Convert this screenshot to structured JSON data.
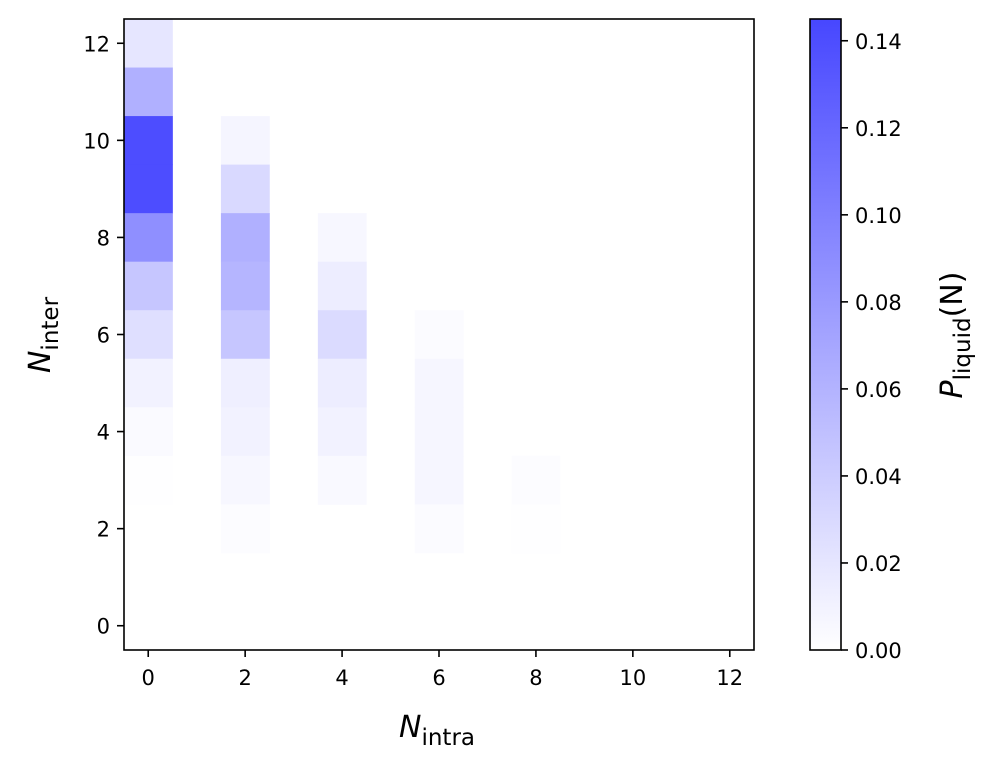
{
  "chart_data": {
    "type": "heatmap",
    "title": "",
    "xlabel": {
      "main": "N",
      "sub": "intra"
    },
    "ylabel": {
      "main": "N",
      "sub": "inter"
    },
    "colorbar_label": {
      "main": "P",
      "sub": "liquid",
      "suffix": "(N)"
    },
    "xlim": [
      -0.5,
      12.5
    ],
    "ylim": [
      -0.5,
      12.5
    ],
    "x_ticks": [
      0,
      2,
      4,
      6,
      8,
      10,
      12
    ],
    "y_ticks": [
      0,
      2,
      4,
      6,
      8,
      10,
      12
    ],
    "colorbar_range": [
      0,
      0.145
    ],
    "colorbar_ticks": [
      "0.00",
      "0.02",
      "0.04",
      "0.06",
      "0.08",
      "0.10",
      "0.12",
      "0.14"
    ],
    "colormap": {
      "low": "#ffffff",
      "high": "#4747ff"
    },
    "cells": [
      {
        "x": 0,
        "y": 12,
        "value": 0.02
      },
      {
        "x": 0,
        "y": 11,
        "value": 0.062
      },
      {
        "x": 0,
        "y": 10,
        "value": 0.14
      },
      {
        "x": 0,
        "y": 9,
        "value": 0.14
      },
      {
        "x": 0,
        "y": 8,
        "value": 0.088
      },
      {
        "x": 0,
        "y": 7,
        "value": 0.045
      },
      {
        "x": 0,
        "y": 6,
        "value": 0.025
      },
      {
        "x": 0,
        "y": 5,
        "value": 0.01
      },
      {
        "x": 0,
        "y": 4,
        "value": 0.004
      },
      {
        "x": 0,
        "y": 3,
        "value": 0.001
      },
      {
        "x": 2,
        "y": 10,
        "value": 0.008
      },
      {
        "x": 2,
        "y": 9,
        "value": 0.03
      },
      {
        "x": 2,
        "y": 8,
        "value": 0.062
      },
      {
        "x": 2,
        "y": 7,
        "value": 0.058
      },
      {
        "x": 2,
        "y": 6,
        "value": 0.045
      },
      {
        "x": 2,
        "y": 5,
        "value": 0.013
      },
      {
        "x": 2,
        "y": 4,
        "value": 0.01
      },
      {
        "x": 2,
        "y": 3,
        "value": 0.006
      },
      {
        "x": 2,
        "y": 2,
        "value": 0.002
      },
      {
        "x": 4,
        "y": 8,
        "value": 0.006
      },
      {
        "x": 4,
        "y": 7,
        "value": 0.014
      },
      {
        "x": 4,
        "y": 6,
        "value": 0.028
      },
      {
        "x": 4,
        "y": 5,
        "value": 0.014
      },
      {
        "x": 4,
        "y": 4,
        "value": 0.01
      },
      {
        "x": 4,
        "y": 3,
        "value": 0.005
      },
      {
        "x": 6,
        "y": 6,
        "value": 0.003
      },
      {
        "x": 6,
        "y": 5,
        "value": 0.007
      },
      {
        "x": 6,
        "y": 4,
        "value": 0.007
      },
      {
        "x": 6,
        "y": 3,
        "value": 0.007
      },
      {
        "x": 6,
        "y": 2,
        "value": 0.003
      },
      {
        "x": 8,
        "y": 3,
        "value": 0.002
      },
      {
        "x": 8,
        "y": 2,
        "value": 0.001
      }
    ]
  }
}
